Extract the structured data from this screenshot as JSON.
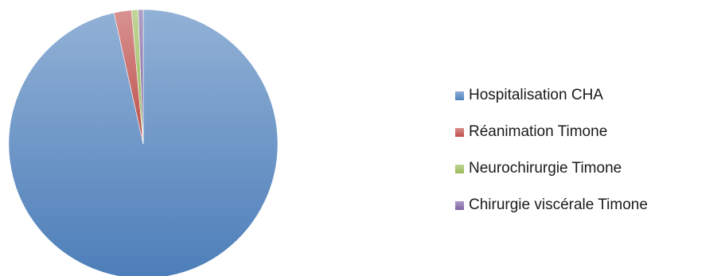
{
  "chart_data": {
    "type": "pie",
    "title": "",
    "legend_position": "right",
    "series": [
      {
        "values": [
          96.5,
          2.1,
          0.8,
          0.6
        ]
      }
    ],
    "categories": [
      "Hospitalisation CHA",
      "Réanimation Timone",
      "Neurochirurgie Timone",
      "Chirurgie viscérale Timone"
    ],
    "slices": [
      {
        "label": "Hospitalisation CHA",
        "value": 96.5,
        "color": "#4F81BD"
      },
      {
        "label": "Réanimation Timone",
        "value": 2.1,
        "color": "#C0504D"
      },
      {
        "label": "Neurochirurgie Timone",
        "value": 0.8,
        "color": "#9BBB59"
      },
      {
        "label": "Chirurgie viscérale Timone",
        "value": 0.6,
        "color": "#8064A2"
      }
    ]
  }
}
